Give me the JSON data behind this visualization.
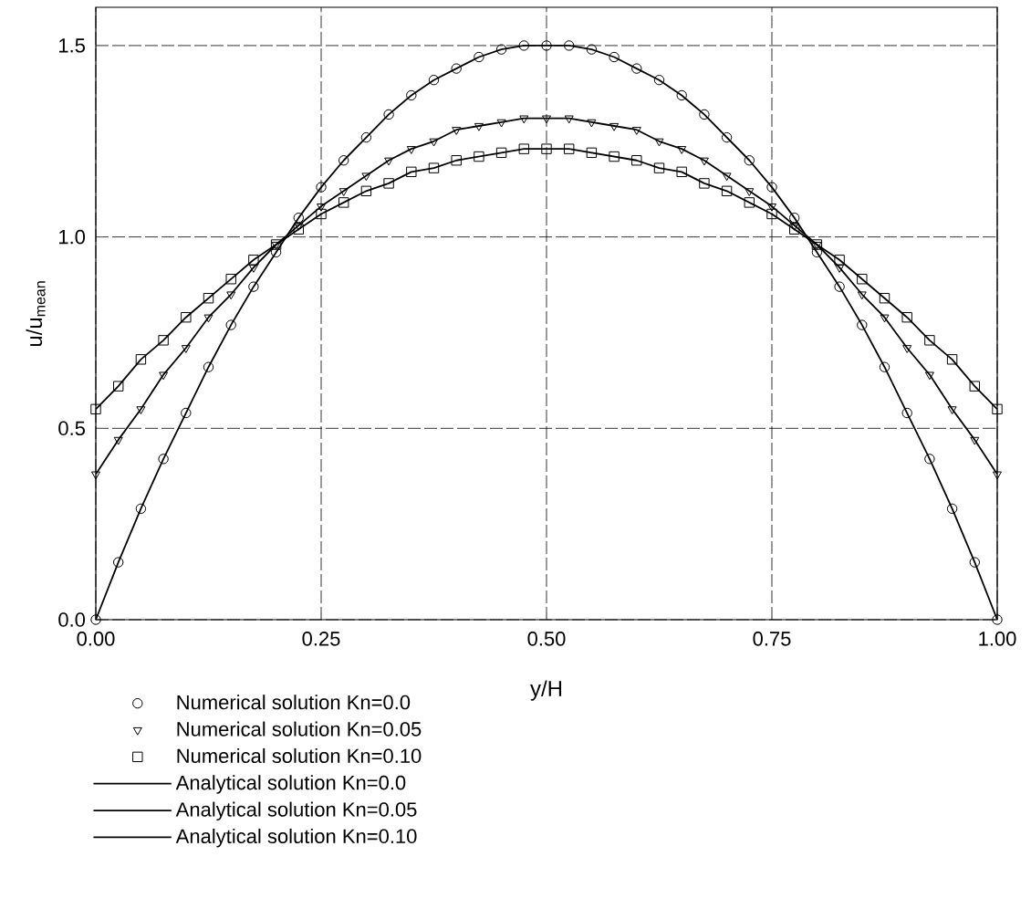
{
  "chart_data": {
    "type": "line",
    "xlabel": "y/H",
    "ylabel": "u/u$_{mean}$",
    "x": [
      0,
      0.025,
      0.05,
      0.075,
      0.1,
      0.125,
      0.15,
      0.175,
      0.2,
      0.225,
      0.25,
      0.275,
      0.3,
      0.325,
      0.35,
      0.375,
      0.4,
      0.425,
      0.45,
      0.475,
      0.5,
      0.525,
      0.55,
      0.575,
      0.6,
      0.625,
      0.65,
      0.675,
      0.7,
      0.725,
      0.75,
      0.775,
      0.8,
      0.825,
      0.85,
      0.875,
      0.9,
      0.925,
      0.95,
      0.975,
      1
    ],
    "series": [
      {
        "name": "Numerical solution  Kn=0.0",
        "type": "scatter",
        "marker": "circle",
        "color": "#000000",
        "values": [
          0,
          0.15,
          0.29,
          0.42,
          0.54,
          0.66,
          0.77,
          0.87,
          0.96,
          1.05,
          1.13,
          1.2,
          1.26,
          1.32,
          1.37,
          1.41,
          1.44,
          1.47,
          1.49,
          1.5,
          1.5,
          1.5,
          1.49,
          1.47,
          1.44,
          1.41,
          1.37,
          1.32,
          1.26,
          1.2,
          1.13,
          1.05,
          0.96,
          0.87,
          0.77,
          0.66,
          0.54,
          0.42,
          0.29,
          0.15,
          0
        ]
      },
      {
        "name": "Numerical solution  Kn=0.05",
        "type": "scatter",
        "marker": "triangle",
        "color": "#000000",
        "values": [
          0.38,
          0.47,
          0.55,
          0.64,
          0.71,
          0.79,
          0.85,
          0.92,
          0.98,
          1.03,
          1.08,
          1.12,
          1.16,
          1.2,
          1.23,
          1.25,
          1.28,
          1.29,
          1.3,
          1.31,
          1.31,
          1.31,
          1.3,
          1.29,
          1.28,
          1.25,
          1.23,
          1.2,
          1.16,
          1.12,
          1.08,
          1.03,
          0.98,
          0.92,
          0.85,
          0.79,
          0.71,
          0.64,
          0.55,
          0.47,
          0.38
        ]
      },
      {
        "name": "Numerical solution  Kn=0.10",
        "type": "scatter",
        "marker": "square",
        "color": "#000000",
        "values": [
          0.55,
          0.61,
          0.68,
          0.73,
          0.79,
          0.84,
          0.89,
          0.94,
          0.98,
          1.02,
          1.06,
          1.09,
          1.12,
          1.14,
          1.17,
          1.18,
          1.2,
          1.21,
          1.22,
          1.23,
          1.23,
          1.23,
          1.22,
          1.21,
          1.2,
          1.18,
          1.17,
          1.14,
          1.12,
          1.09,
          1.06,
          1.02,
          0.98,
          0.94,
          0.89,
          0.84,
          0.79,
          0.73,
          0.68,
          0.61,
          0.55
        ]
      },
      {
        "name": "Analytical solution  Kn=0.0",
        "line_style": "solid",
        "color": "#000000",
        "values": [
          0,
          0.15,
          0.29,
          0.42,
          0.54,
          0.66,
          0.77,
          0.87,
          0.96,
          1.05,
          1.13,
          1.2,
          1.26,
          1.32,
          1.37,
          1.41,
          1.44,
          1.47,
          1.49,
          1.5,
          1.5,
          1.5,
          1.49,
          1.47,
          1.44,
          1.41,
          1.37,
          1.32,
          1.26,
          1.2,
          1.13,
          1.05,
          0.96,
          0.87,
          0.77,
          0.66,
          0.54,
          0.42,
          0.29,
          0.15,
          0
        ]
      },
      {
        "name": "Analytical solution  Kn=0.05",
        "line_style": "solid",
        "color": "#000000",
        "values": [
          0.38,
          0.47,
          0.55,
          0.64,
          0.71,
          0.79,
          0.85,
          0.92,
          0.98,
          1.03,
          1.08,
          1.12,
          1.16,
          1.2,
          1.23,
          1.25,
          1.28,
          1.29,
          1.3,
          1.31,
          1.31,
          1.31,
          1.3,
          1.29,
          1.28,
          1.25,
          1.23,
          1.2,
          1.16,
          1.12,
          1.08,
          1.03,
          0.98,
          0.92,
          0.85,
          0.79,
          0.71,
          0.64,
          0.55,
          0.47,
          0.38
        ]
      },
      {
        "name": "Analytical solution  Kn=0.10",
        "line_style": "solid",
        "color": "#000000",
        "values": [
          0.55,
          0.61,
          0.68,
          0.73,
          0.79,
          0.84,
          0.89,
          0.94,
          0.98,
          1.02,
          1.06,
          1.09,
          1.12,
          1.14,
          1.17,
          1.18,
          1.2,
          1.21,
          1.22,
          1.23,
          1.23,
          1.23,
          1.22,
          1.21,
          1.2,
          1.18,
          1.17,
          1.14,
          1.12,
          1.09,
          1.06,
          1.02,
          0.98,
          0.94,
          0.89,
          0.84,
          0.79,
          0.73,
          0.68,
          0.61,
          0.55
        ]
      }
    ],
    "xlim": [
      0,
      1
    ],
    "ylim": [
      0,
      1.6
    ],
    "xticks": [
      {
        "value": 0,
        "label": "0.00"
      },
      {
        "value": 0.25,
        "label": "0.25"
      },
      {
        "value": 0.5,
        "label": "0.50"
      },
      {
        "value": 0.75,
        "label": "0.75"
      },
      {
        "value": 1,
        "label": "1.00"
      }
    ],
    "yticks": [
      {
        "value": 0,
        "label": "0.0"
      },
      {
        "value": 0.5,
        "label": "0.5"
      },
      {
        "value": 1,
        "label": "1.0"
      },
      {
        "value": 1.5,
        "label": "1.5"
      }
    ],
    "grid": true,
    "legend": "bottom"
  }
}
